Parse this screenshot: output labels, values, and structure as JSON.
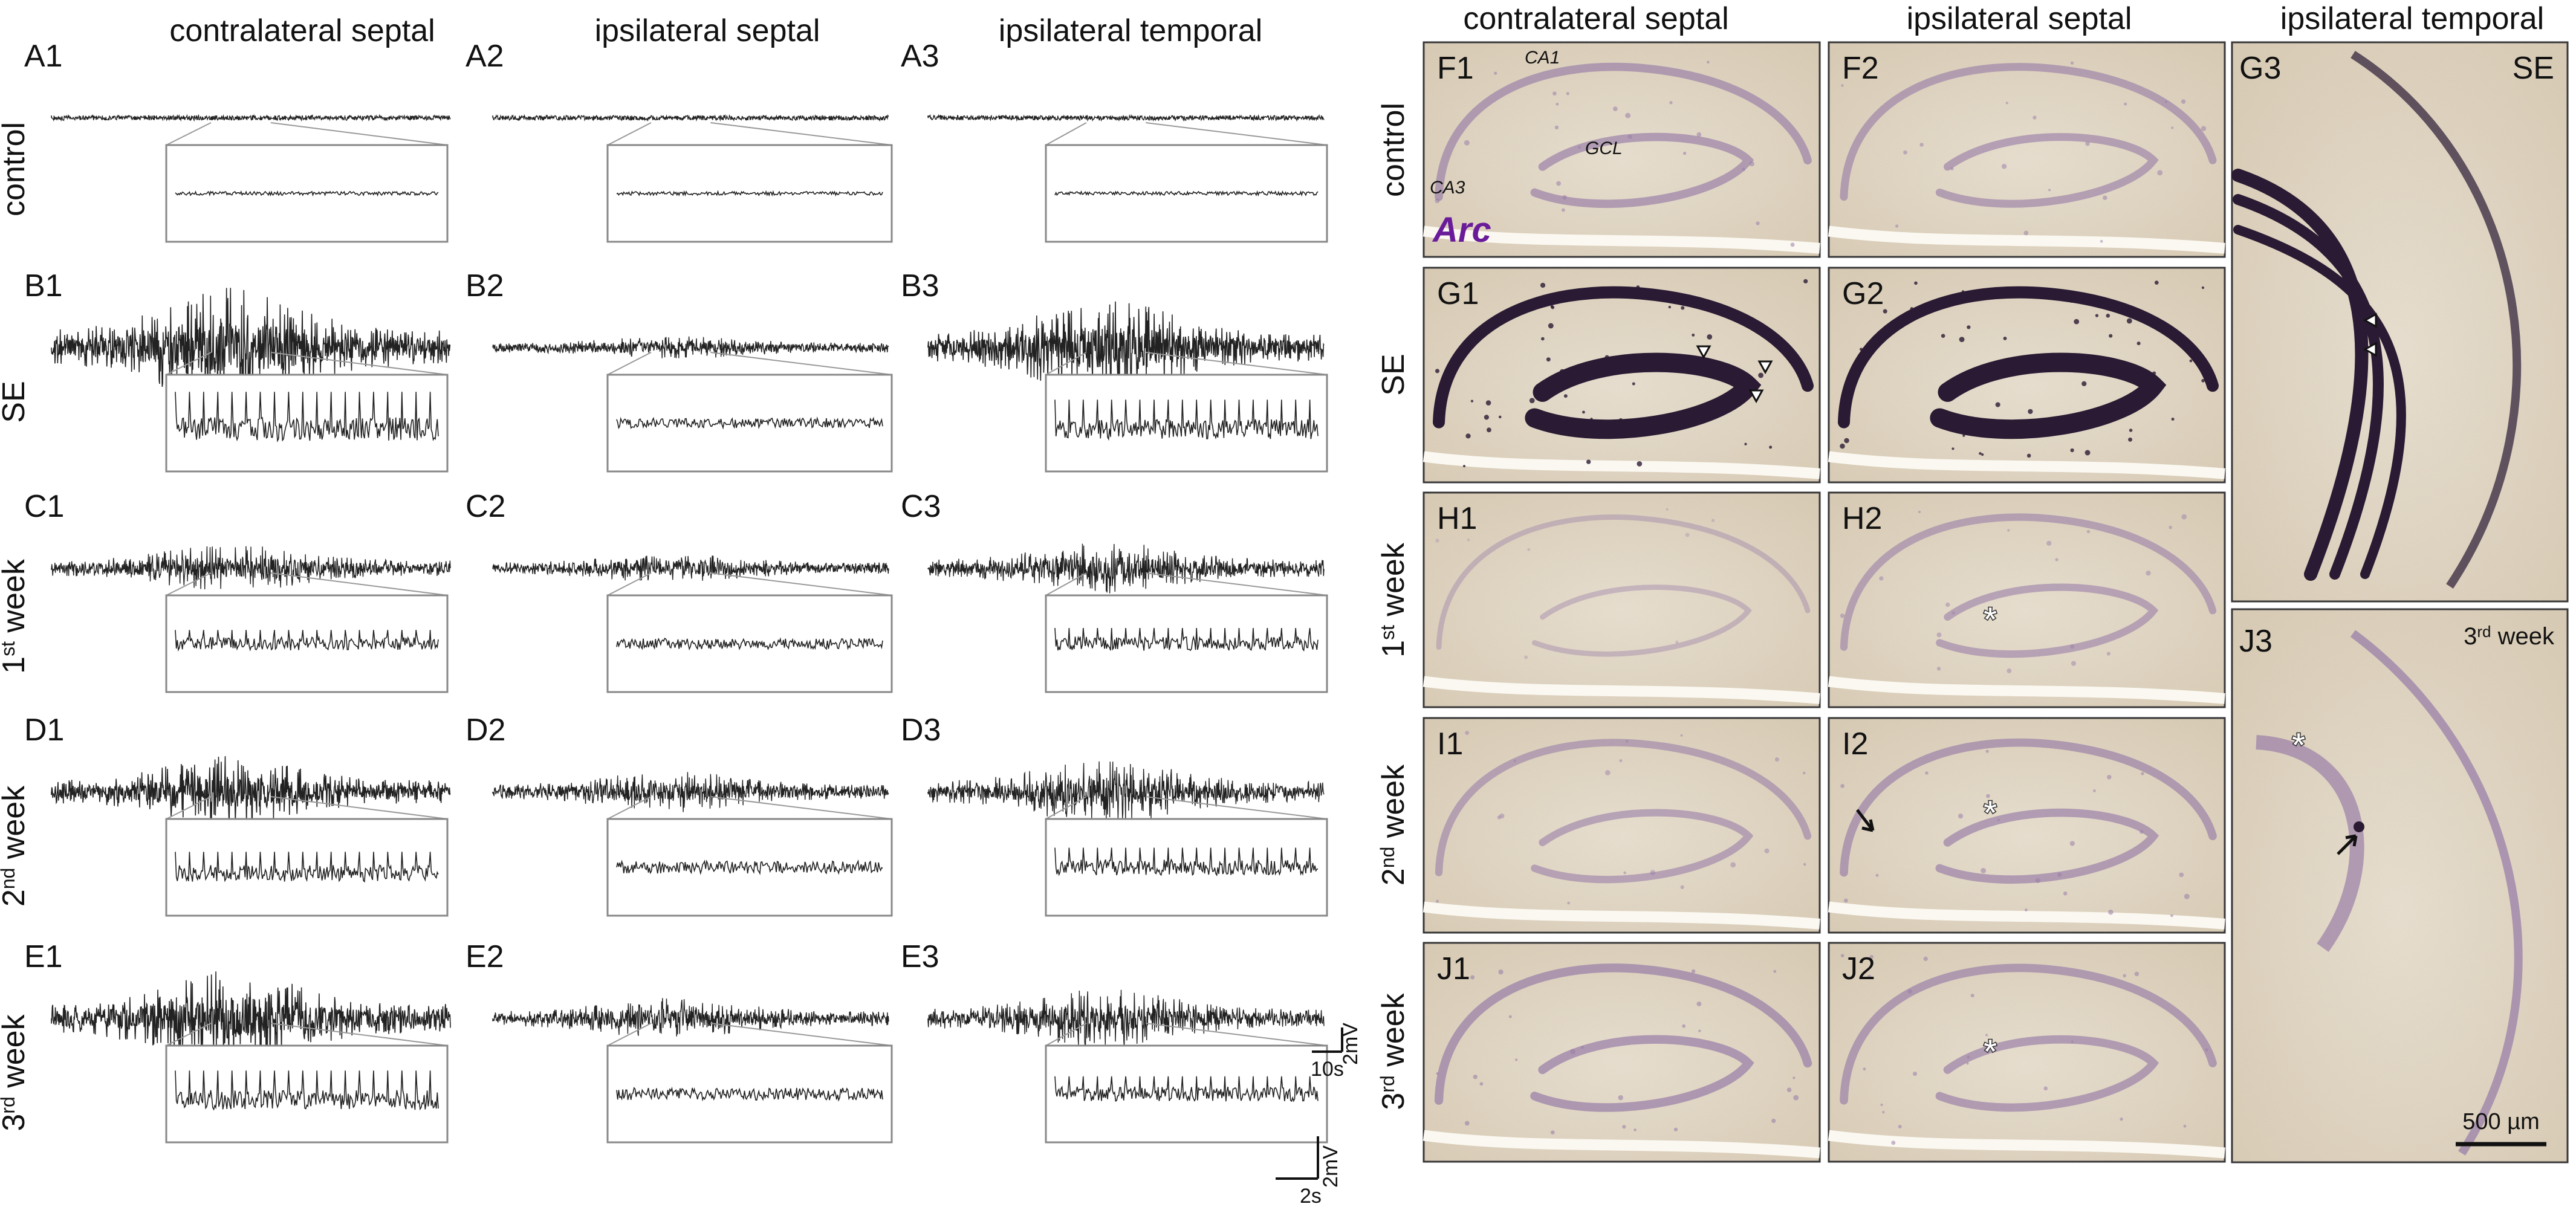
{
  "eeg": {
    "column_headers": [
      "contralateral septal",
      "ipsilateral septal",
      "ipsilateral temporal"
    ],
    "row_labels": [
      {
        "text": "control",
        "sup": ""
      },
      {
        "text": "SE",
        "sup": ""
      },
      {
        "text": "1",
        "sup": "st",
        "rest": " week"
      },
      {
        "text": "2",
        "sup": "nd",
        "rest": " week"
      },
      {
        "text": "3",
        "sup": "rd",
        "rest": " week"
      }
    ],
    "panel_labels": [
      [
        "A1",
        "A2",
        "A3"
      ],
      [
        "B1",
        "B2",
        "B3"
      ],
      [
        "C1",
        "C2",
        "C3"
      ],
      [
        "D1",
        "D2",
        "D3"
      ],
      [
        "E1",
        "E2",
        "E3"
      ]
    ],
    "activity_levels": [
      [
        0.05,
        0.05,
        0.05
      ],
      [
        0.95,
        0.15,
        0.75
      ],
      [
        0.35,
        0.2,
        0.4
      ],
      [
        0.55,
        0.3,
        0.5
      ],
      [
        0.75,
        0.3,
        0.45
      ]
    ],
    "scalebar_main": {
      "time": "10s",
      "voltage": "2mV"
    },
    "scalebar_inset": {
      "time": "2s",
      "voltage": "2mV"
    }
  },
  "histology": {
    "column_headers": [
      "contralateral septal",
      "ipsilateral septal",
      "ipsilateral temporal"
    ],
    "row_labels": [
      {
        "text": "control",
        "sup": ""
      },
      {
        "text": "SE",
        "sup": ""
      },
      {
        "text": "1",
        "sup": "st",
        "rest": " week"
      },
      {
        "text": "2",
        "sup": "nd",
        "rest": " week"
      },
      {
        "text": "3",
        "sup": "rd",
        "rest": " week"
      }
    ],
    "panel_labels": {
      "F1": "F1",
      "F2": "F2",
      "G1": "G1",
      "G2": "G2",
      "G3": "G3",
      "H1": "H1",
      "H2": "H2",
      "I1": "I1",
      "I2": "I2",
      "J1": "J1",
      "J2": "J2",
      "J3": "J3"
    },
    "annotations": {
      "ca1": "CA1",
      "ca3": "CA3",
      "gcl": "GCL",
      "arc": "Arc",
      "g3_tag": "SE",
      "j3_tag_num": "3",
      "j3_tag_sup": "rd",
      "j3_tag_rest": " week",
      "scalebar": "500 µm"
    },
    "colors": {
      "tissue": "#e6dcc8",
      "stain_dark": "#2a1a33",
      "stain_faint": "#9a7fa8",
      "arc_label": "#6a1b9a"
    }
  }
}
